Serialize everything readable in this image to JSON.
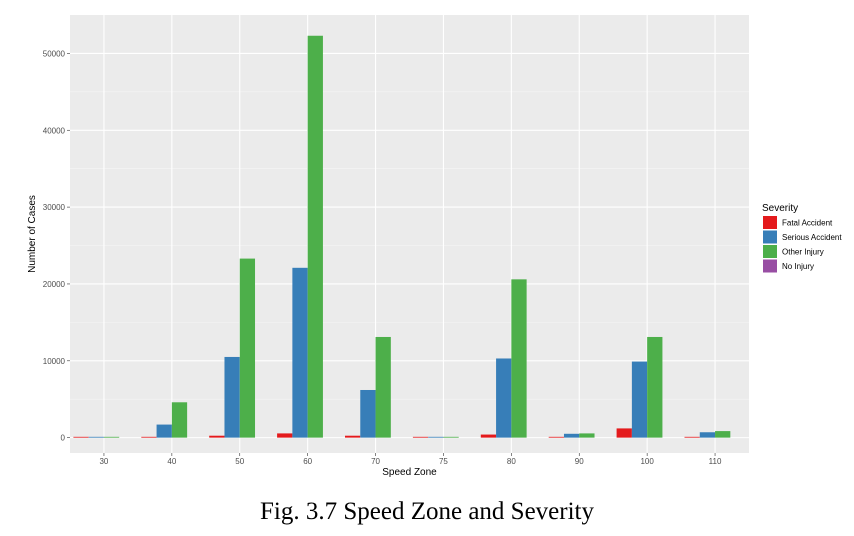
{
  "caption": "Fig. 3.7 Speed Zone and Severity",
  "chart_data": {
    "type": "bar",
    "xlabel": "Speed Zone",
    "ylabel": "Number of Cases",
    "categories": [
      "30",
      "40",
      "50",
      "60",
      "70",
      "75",
      "80",
      "90",
      "100",
      "110"
    ],
    "ylim": [
      -2000,
      55000
    ],
    "yticks": [
      0,
      10000,
      20000,
      30000,
      40000,
      50000
    ],
    "grid": true,
    "legend": {
      "title": "Severity",
      "placement": "right"
    },
    "series": [
      {
        "name": "Fatal Accident",
        "color": "#e41a1c",
        "values": [
          5,
          60,
          250,
          550,
          250,
          5,
          400,
          50,
          1200,
          100
        ]
      },
      {
        "name": "Serious Accident",
        "color": "#377eb8",
        "values": [
          60,
          1700,
          10500,
          22100,
          6200,
          30,
          10300,
          500,
          9900,
          700
        ]
      },
      {
        "name": "Other Injury",
        "color": "#4daf4a",
        "values": [
          80,
          4600,
          23300,
          52300,
          13100,
          50,
          20600,
          550,
          13100,
          850
        ]
      },
      {
        "name": "No Injury",
        "color": "#984ea3",
        "values": [
          0,
          0,
          0,
          0,
          0,
          0,
          0,
          0,
          0,
          0
        ]
      }
    ]
  }
}
